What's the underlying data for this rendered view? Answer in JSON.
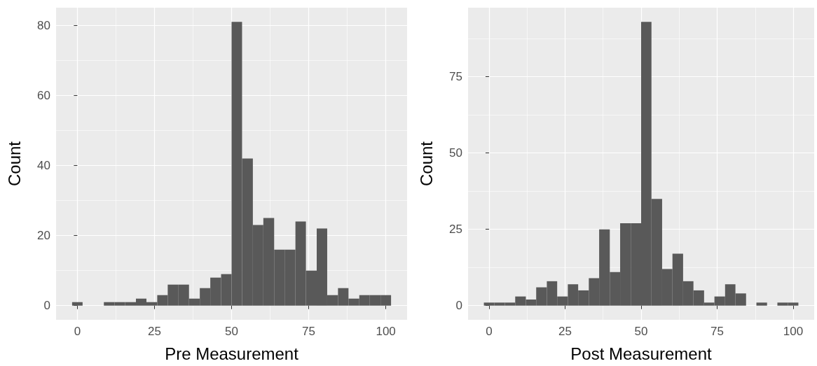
{
  "chart_data": [
    {
      "type": "histogram",
      "xlabel": "Pre Measurement",
      "ylabel": "Count",
      "color": "#595959",
      "bins": [
        -1.7,
        1.7,
        5.2,
        8.6,
        12.1,
        15.5,
        19,
        22.4,
        25.9,
        29.3,
        32.8,
        36.2,
        39.7,
        43.1,
        46.6,
        50,
        53.4,
        56.9,
        60.3,
        63.8,
        67.2,
        70.7,
        74.1,
        77.6,
        81,
        84.5,
        87.9,
        91.4,
        94.8,
        98.3,
        101.7
      ],
      "values": [
        1,
        0,
        0,
        1,
        1,
        1,
        2,
        1,
        3,
        6,
        6,
        2,
        5,
        8,
        9,
        81,
        42,
        23,
        25,
        16,
        16,
        24,
        10,
        22,
        3,
        5,
        2,
        3,
        3,
        3
      ],
      "xlim": [
        -6.9,
        106.9
      ],
      "xticks": [
        0,
        25,
        50,
        75,
        100
      ],
      "ylim": [
        -4.05,
        85.05
      ],
      "yticks": [
        0,
        20,
        40,
        60,
        80
      ],
      "grid": true
    },
    {
      "type": "histogram",
      "xlabel": "Post Measurement",
      "ylabel": "Count",
      "color": "#595959",
      "bins": [
        -1.7,
        1.7,
        5.2,
        8.6,
        12.1,
        15.5,
        19,
        22.4,
        25.9,
        29.3,
        32.8,
        36.2,
        39.7,
        43.1,
        46.6,
        50,
        53.4,
        56.9,
        60.3,
        63.8,
        67.2,
        70.7,
        74.1,
        77.6,
        81,
        84.5,
        87.9,
        91.4,
        94.8,
        98.3,
        101.7
      ],
      "values": [
        1,
        1,
        1,
        3,
        2,
        6,
        8,
        3,
        7,
        5,
        9,
        25,
        11,
        27,
        27,
        93,
        35,
        12,
        17,
        8,
        5,
        1,
        3,
        7,
        4,
        0,
        1,
        0,
        1,
        1
      ],
      "xlim": [
        -6.9,
        106.9
      ],
      "xticks": [
        0,
        25,
        50,
        75,
        100
      ],
      "ylim": [
        -4.65,
        97.65
      ],
      "yticks": [
        0,
        25,
        50,
        75
      ],
      "grid": true
    }
  ]
}
